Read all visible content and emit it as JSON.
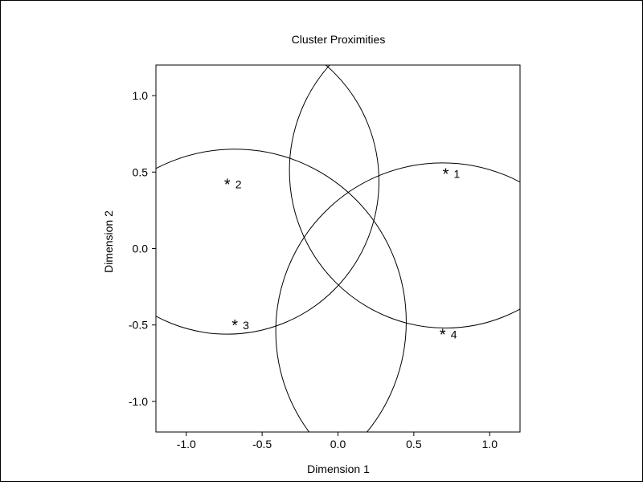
{
  "chart_data": {
    "type": "scatter",
    "title": "Cluster Proximities",
    "xlabel": "Dimension 1",
    "ylabel": "Dimension 2",
    "xlim": [
      -1.2,
      1.2
    ],
    "ylim": [
      -1.2,
      1.2
    ],
    "x_ticks": [
      -1.0,
      -0.5,
      0.0,
      0.5,
      1.0
    ],
    "x_tick_labels": [
      "-1.0",
      "-0.5",
      "0.0",
      "0.5",
      "1.0"
    ],
    "y_ticks": [
      1.0,
      0.5,
      0.0,
      -0.5,
      -1.0
    ],
    "y_tick_labels": [
      "1.0",
      "0.5",
      "0.0",
      "-0.5",
      "-1.0"
    ],
    "marker": "*",
    "grid": false,
    "points": [
      {
        "label": "1",
        "x": 0.71,
        "y": 0.51
      },
      {
        "label": "2",
        "x": -0.73,
        "y": 0.44
      },
      {
        "label": "3",
        "x": -0.68,
        "y": -0.48
      },
      {
        "label": "4",
        "x": 0.69,
        "y": -0.54
      }
    ],
    "circles": [
      {
        "cluster": "1",
        "cx": 0.71,
        "cy": 0.51,
        "r": 1.03
      },
      {
        "cluster": "2",
        "cx": -0.73,
        "cy": 0.44,
        "r": 1.0
      },
      {
        "cluster": "3",
        "cx": -0.68,
        "cy": -0.48,
        "r": 1.13
      },
      {
        "cluster": "4",
        "cx": 0.69,
        "cy": -0.54,
        "r": 1.1
      }
    ]
  }
}
